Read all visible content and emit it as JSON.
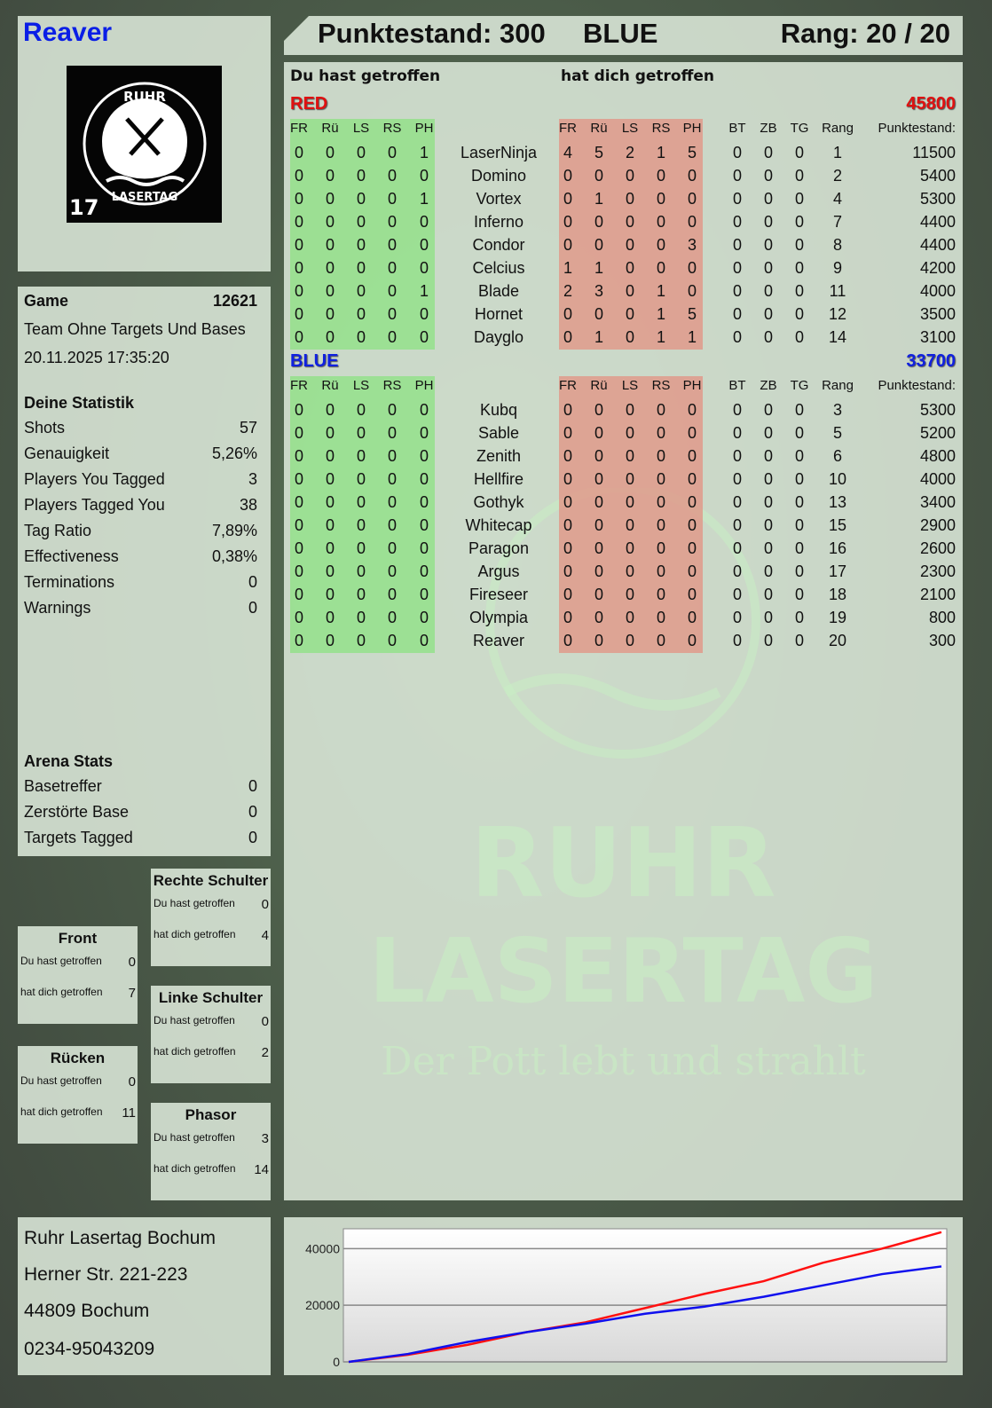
{
  "player": {
    "name": "Reaver",
    "logo_text": "RUHR LASERTAG",
    "logo_number": "17"
  },
  "header": {
    "score": "Punktestand: 300",
    "team": "BLUE",
    "rank": "Rang: 20 / 20"
  },
  "main": {
    "you_hit": "Du hast getroffen",
    "hit_you": "hat dich getroffen",
    "hit_cols": [
      "FR",
      "Rü",
      "LS",
      "RS",
      "PH"
    ],
    "stat_cols": [
      "BT",
      "ZB",
      "TG",
      "Rang",
      "Punktestand:"
    ],
    "watermark": {
      "line1": "RUHR",
      "line2": "LASERTAG",
      "tagline": "Der Pott lebt und strahlt"
    },
    "teams": [
      {
        "name": "RED",
        "score": "45800",
        "color": "#e01010",
        "players": [
          {
            "you": [
              "0",
              "0",
              "0",
              "0",
              "1"
            ],
            "name": "LaserNinja",
            "them": [
              "4",
              "5",
              "2",
              "1",
              "5"
            ],
            "stats": [
              "0",
              "0",
              "0",
              "1",
              "11500"
            ]
          },
          {
            "you": [
              "0",
              "0",
              "0",
              "0",
              "0"
            ],
            "name": "Domino",
            "them": [
              "0",
              "0",
              "0",
              "0",
              "0"
            ],
            "stats": [
              "0",
              "0",
              "0",
              "2",
              "5400"
            ]
          },
          {
            "you": [
              "0",
              "0",
              "0",
              "0",
              "1"
            ],
            "name": "Vortex",
            "them": [
              "0",
              "1",
              "0",
              "0",
              "0"
            ],
            "stats": [
              "0",
              "0",
              "0",
              "4",
              "5300"
            ]
          },
          {
            "you": [
              "0",
              "0",
              "0",
              "0",
              "0"
            ],
            "name": "Inferno",
            "them": [
              "0",
              "0",
              "0",
              "0",
              "0"
            ],
            "stats": [
              "0",
              "0",
              "0",
              "7",
              "4400"
            ]
          },
          {
            "you": [
              "0",
              "0",
              "0",
              "0",
              "0"
            ],
            "name": "Condor",
            "them": [
              "0",
              "0",
              "0",
              "0",
              "3"
            ],
            "stats": [
              "0",
              "0",
              "0",
              "8",
              "4400"
            ]
          },
          {
            "you": [
              "0",
              "0",
              "0",
              "0",
              "0"
            ],
            "name": "Celcius",
            "them": [
              "1",
              "1",
              "0",
              "0",
              "0"
            ],
            "stats": [
              "0",
              "0",
              "0",
              "9",
              "4200"
            ]
          },
          {
            "you": [
              "0",
              "0",
              "0",
              "0",
              "1"
            ],
            "name": "Blade",
            "them": [
              "2",
              "3",
              "0",
              "1",
              "0"
            ],
            "stats": [
              "0",
              "0",
              "0",
              "11",
              "4000"
            ]
          },
          {
            "you": [
              "0",
              "0",
              "0",
              "0",
              "0"
            ],
            "name": "Hornet",
            "them": [
              "0",
              "0",
              "0",
              "1",
              "5"
            ],
            "stats": [
              "0",
              "0",
              "0",
              "12",
              "3500"
            ]
          },
          {
            "you": [
              "0",
              "0",
              "0",
              "0",
              "0"
            ],
            "name": "Dayglo",
            "them": [
              "0",
              "1",
              "0",
              "1",
              "1"
            ],
            "stats": [
              "0",
              "0",
              "0",
              "14",
              "3100"
            ]
          }
        ]
      },
      {
        "name": "BLUE",
        "score": "33700",
        "color": "#1020e0",
        "players": [
          {
            "you": [
              "0",
              "0",
              "0",
              "0",
              "0"
            ],
            "name": "Kubq",
            "them": [
              "0",
              "0",
              "0",
              "0",
              "0"
            ],
            "stats": [
              "0",
              "0",
              "0",
              "3",
              "5300"
            ]
          },
          {
            "you": [
              "0",
              "0",
              "0",
              "0",
              "0"
            ],
            "name": "Sable",
            "them": [
              "0",
              "0",
              "0",
              "0",
              "0"
            ],
            "stats": [
              "0",
              "0",
              "0",
              "5",
              "5200"
            ]
          },
          {
            "you": [
              "0",
              "0",
              "0",
              "0",
              "0"
            ],
            "name": "Zenith",
            "them": [
              "0",
              "0",
              "0",
              "0",
              "0"
            ],
            "stats": [
              "0",
              "0",
              "0",
              "6",
              "4800"
            ]
          },
          {
            "you": [
              "0",
              "0",
              "0",
              "0",
              "0"
            ],
            "name": "Hellfire",
            "them": [
              "0",
              "0",
              "0",
              "0",
              "0"
            ],
            "stats": [
              "0",
              "0",
              "0",
              "10",
              "4000"
            ]
          },
          {
            "you": [
              "0",
              "0",
              "0",
              "0",
              "0"
            ],
            "name": "Gothyk",
            "them": [
              "0",
              "0",
              "0",
              "0",
              "0"
            ],
            "stats": [
              "0",
              "0",
              "0",
              "13",
              "3400"
            ]
          },
          {
            "you": [
              "0",
              "0",
              "0",
              "0",
              "0"
            ],
            "name": "Whitecap",
            "them": [
              "0",
              "0",
              "0",
              "0",
              "0"
            ],
            "stats": [
              "0",
              "0",
              "0",
              "15",
              "2900"
            ]
          },
          {
            "you": [
              "0",
              "0",
              "0",
              "0",
              "0"
            ],
            "name": "Paragon",
            "them": [
              "0",
              "0",
              "0",
              "0",
              "0"
            ],
            "stats": [
              "0",
              "0",
              "0",
              "16",
              "2600"
            ]
          },
          {
            "you": [
              "0",
              "0",
              "0",
              "0",
              "0"
            ],
            "name": "Argus",
            "them": [
              "0",
              "0",
              "0",
              "0",
              "0"
            ],
            "stats": [
              "0",
              "0",
              "0",
              "17",
              "2300"
            ]
          },
          {
            "you": [
              "0",
              "0",
              "0",
              "0",
              "0"
            ],
            "name": "Fireseer",
            "them": [
              "0",
              "0",
              "0",
              "0",
              "0"
            ],
            "stats": [
              "0",
              "0",
              "0",
              "18",
              "2100"
            ]
          },
          {
            "you": [
              "0",
              "0",
              "0",
              "0",
              "0"
            ],
            "name": "Olympia",
            "them": [
              "0",
              "0",
              "0",
              "0",
              "0"
            ],
            "stats": [
              "0",
              "0",
              "0",
              "19",
              "800"
            ]
          },
          {
            "you": [
              "0",
              "0",
              "0",
              "0",
              "0"
            ],
            "name": "Reaver",
            "them": [
              "0",
              "0",
              "0",
              "0",
              "0"
            ],
            "stats": [
              "0",
              "0",
              "0",
              "20",
              "300"
            ]
          }
        ]
      }
    ]
  },
  "game": {
    "label": "Game",
    "id": "12621",
    "mode": "Team Ohne Targets Und Bases",
    "datetime": "20.11.2025 17:35:20"
  },
  "stats": {
    "title": "Deine Statistik",
    "items": [
      {
        "label": "Shots",
        "value": "57"
      },
      {
        "label": "Genauigkeit",
        "value": "5,26%"
      },
      {
        "label": "Players You Tagged",
        "value": "3"
      },
      {
        "label": "Players Tagged You",
        "value": "38"
      },
      {
        "label": "Tag Ratio",
        "value": "7,89%"
      },
      {
        "label": "Effectiveness",
        "value": "0,38%"
      },
      {
        "label": "Terminations",
        "value": "0"
      },
      {
        "label": "Warnings",
        "value": "0"
      }
    ]
  },
  "arena": {
    "title": "Arena Stats",
    "items": [
      {
        "label": "Basetreffer",
        "value": "0"
      },
      {
        "label": "Zerstörte Base",
        "value": "0"
      },
      {
        "label": "Targets Tagged",
        "value": "0"
      }
    ]
  },
  "zones": [
    {
      "title": "Rechte Schulter",
      "you_label": "Du hast getroffen",
      "you": "0",
      "them_label": "hat dich getroffen",
      "them": "4"
    },
    {
      "title": "Front",
      "you_label": "Du hast getroffen",
      "you": "0",
      "them_label": "hat dich getroffen",
      "them": "7"
    },
    {
      "title": "Linke Schulter",
      "you_label": "Du hast getroffen",
      "you": "0",
      "them_label": "hat dich getroffen",
      "them": "2"
    },
    {
      "title": "Rücken",
      "you_label": "Du hast getroffen",
      "you": "0",
      "them_label": "hat dich getroffen",
      "them": "11"
    },
    {
      "title": "Phasor",
      "you_label": "Du hast getroffen",
      "you": "3",
      "them_label": "hat dich getroffen",
      "them": "14"
    }
  ],
  "address": [
    "Ruhr Lasertag Bochum",
    "Herner Str. 221-223",
    "44809 Bochum",
    "0234-95043209"
  ],
  "chart_data": {
    "type": "line",
    "ylim": [
      0,
      47000
    ],
    "yticks": [
      "0",
      "20000",
      "40000"
    ],
    "grid": true,
    "x": [
      0,
      1,
      2,
      3,
      4,
      5,
      6,
      7,
      8,
      9,
      10
    ],
    "series": [
      {
        "color": "#ff1010",
        "values": [
          0,
          2500,
          6000,
          10500,
          14000,
          19000,
          24000,
          28500,
          35000,
          40000,
          45800
        ]
      },
      {
        "color": "#1010ee",
        "values": [
          0,
          2800,
          7000,
          10500,
          13500,
          17000,
          19500,
          23000,
          27000,
          31000,
          33700
        ]
      }
    ]
  }
}
